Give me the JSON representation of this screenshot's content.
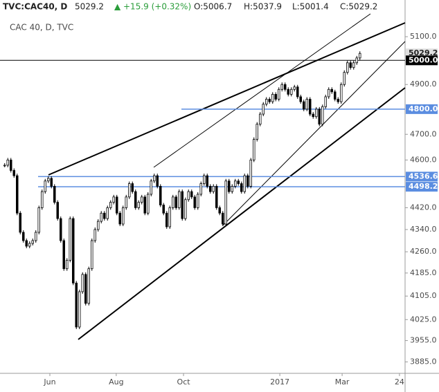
{
  "header": {
    "symbol": "TVC:CAC40, D",
    "last": "5029.2",
    "change": "+15.9 (+0.32%)",
    "open": "O:5006.7",
    "high": "H:5037.9",
    "low": "L:5001.4",
    "close": "C:5029.2"
  },
  "chart_data": {
    "type": "candlestick",
    "legend": "CAC 40, D, TVC",
    "log_scale": true,
    "ylim": [
      3848,
      5259
    ],
    "xlim": [
      -1.5,
      128.5
    ],
    "yticks": [
      {
        "value": 5100,
        "label": "5100.0"
      },
      {
        "value": 4900,
        "label": "4900.0"
      },
      {
        "value": 4700,
        "label": "4700.0"
      },
      {
        "value": 4600,
        "label": "4600.0"
      },
      {
        "value": 4420,
        "label": "4420.0"
      },
      {
        "value": 4340,
        "label": "4340.0"
      },
      {
        "value": 4260,
        "label": "4260.0"
      },
      {
        "value": 4185,
        "label": "4185.0"
      },
      {
        "value": 4105,
        "label": "4105.0"
      },
      {
        "value": 4025,
        "label": "4025.0"
      },
      {
        "value": 3955,
        "label": "3955.0"
      },
      {
        "value": 3885,
        "label": "3885.0"
      }
    ],
    "xticks": [
      {
        "value": 14.5,
        "label": "Jun"
      },
      {
        "value": 35.8,
        "label": "Aug"
      },
      {
        "value": 57.4,
        "label": "Oct"
      },
      {
        "value": 88.3,
        "label": "2017"
      },
      {
        "value": 108.3,
        "label": "Mar"
      },
      {
        "value": 126.7,
        "label": "24"
      }
    ],
    "closes": [
      4580,
      4600,
      4560,
      4540,
      4400,
      4330,
      4300,
      4280,
      4290,
      4300,
      4330,
      4420,
      4480,
      4520,
      4530,
      4500,
      4440,
      4380,
      4300,
      4200,
      4230,
      4380,
      4150,
      4000,
      4120,
      4180,
      4080,
      4200,
      4300,
      4340,
      4370,
      4400,
      4380,
      4420,
      4440,
      4460,
      4400,
      4360,
      4420,
      4460,
      4510,
      4480,
      4420,
      4440,
      4460,
      4400,
      4470,
      4520,
      4540,
      4500,
      4430,
      4400,
      4350,
      4420,
      4460,
      4420,
      4480,
      4380,
      4450,
      4480,
      4460,
      4420,
      4470,
      4510,
      4540,
      4500,
      4480,
      4500,
      4420,
      4400,
      4360,
      4520,
      4480,
      4500,
      4520,
      4510,
      4480,
      4540,
      4500,
      4600,
      4680,
      4740,
      4780,
      4820,
      4840,
      4830,
      4860,
      4840,
      4880,
      4900,
      4880,
      4860,
      4880,
      4890,
      4850,
      4830,
      4800,
      4840,
      4780,
      4770,
      4800,
      4740,
      4810,
      4850,
      4880,
      4870,
      4840,
      4830,
      4900,
      4950,
      4990,
      4970,
      4990,
      5010,
      5029.2
    ],
    "levels": [
      {
        "value": 5029.2,
        "label": "5029.2",
        "color": "#e0e0e0",
        "text_color": "#222",
        "line": false
      },
      {
        "value": 5000,
        "label": "5000.0",
        "color": "#000000",
        "text_color": "#ffffff",
        "line": true
      },
      {
        "value": 4800,
        "label": "4800.0",
        "color": "#5b8de0",
        "text_color": "#ffffff",
        "line": true
      },
      {
        "value": 4536.6,
        "label": "4536.6",
        "color": "#5b8de0",
        "text_color": "#ffffff",
        "line": true
      },
      {
        "value": 4498.2,
        "label": "4498.2",
        "color": "#5b8de0",
        "text_color": "#ffffff",
        "line": true
      }
    ]
  }
}
